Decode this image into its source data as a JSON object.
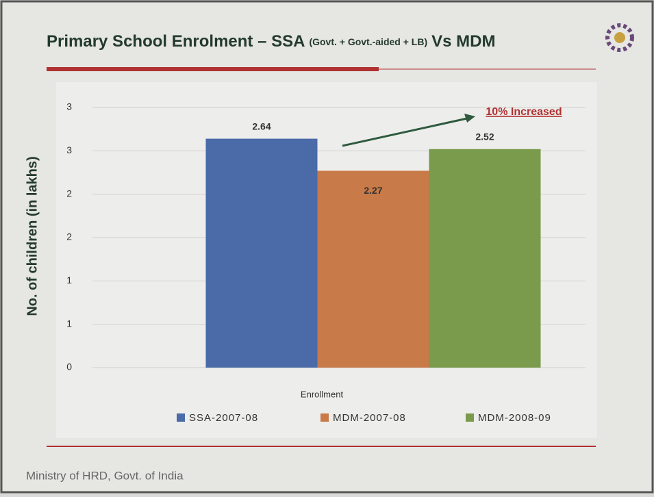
{
  "chart_data": {
    "type": "bar",
    "title": "Primary School Enrolment – SSA",
    "title_note": "(Govt. + Govt.-aided + LB)",
    "title_end": "Vs MDM",
    "ylabel": "No. of children (in lakhs)",
    "categories": [
      "Enrollment"
    ],
    "series": [
      {
        "name": "SSA-2007-08",
        "color": "#4a6aa8",
        "values": [
          2.64
        ]
      },
      {
        "name": "MDM-2007-08",
        "color": "#c87a48",
        "values": [
          2.27
        ]
      },
      {
        "name": "MDM-2008-09",
        "color": "#7a9a4c",
        "values": [
          2.52
        ]
      }
    ],
    "ylim": [
      0,
      3
    ],
    "yticks": [
      0,
      {
        "value": 0.5,
        "label": "1"
      },
      1,
      {
        "value": 1.5,
        "label": "2"
      },
      2,
      {
        "value": 2.5,
        "label": "3"
      },
      3
    ],
    "grid": true,
    "legend": "bottom",
    "annotation": "10% Increased",
    "footer": "Ministry of HRD, Govt. of India"
  }
}
